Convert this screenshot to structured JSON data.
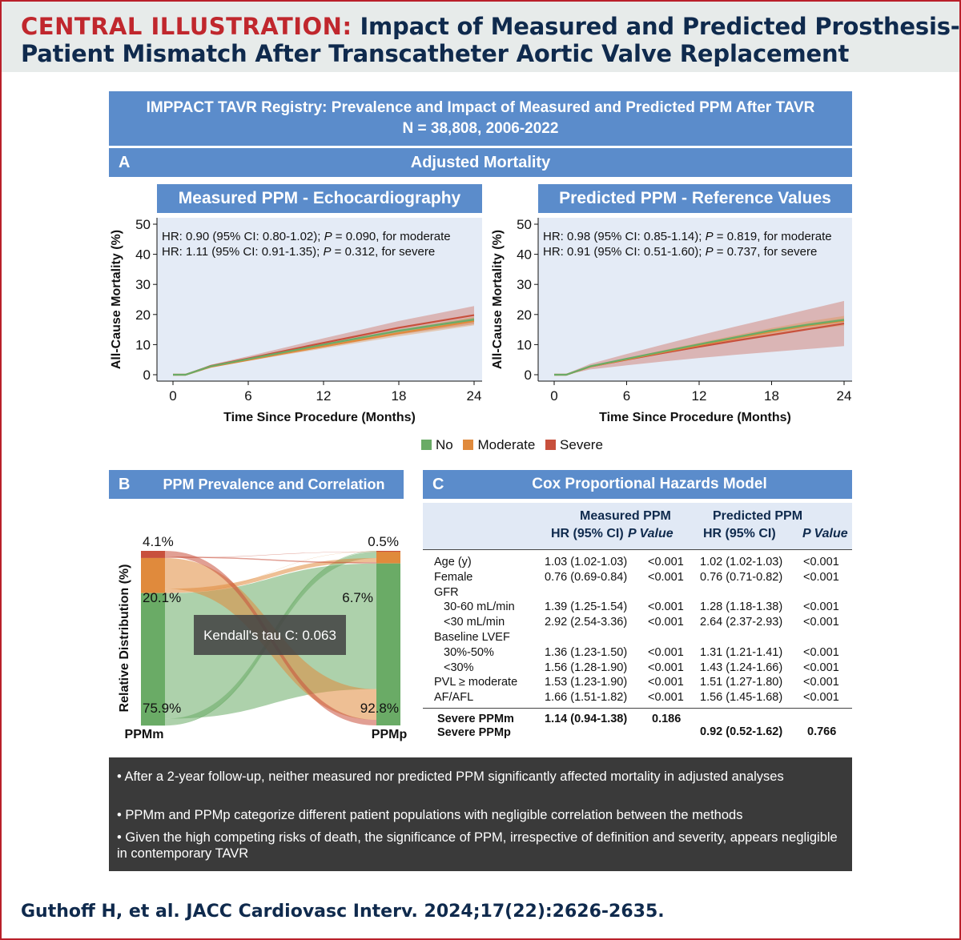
{
  "header": {
    "label": "CENTRAL ILLUSTRATION:",
    "title_line1": "Impact of Measured and Predicted Prosthesis-",
    "title_line2": "Patient Mismatch After Transcatheter Aortic Valve Replacement"
  },
  "registry": {
    "line1": "IMPPACT TAVR Registry: Prevalence and Impact of Measured and Predicted PPM After TAVR",
    "line2": "N = 38,808, 2006-2022"
  },
  "panel_a": {
    "letter": "A",
    "title": "Adjusted Mortality"
  },
  "panel_b": {
    "letter": "B",
    "title": "PPM Prevalence and Correlation"
  },
  "panel_c": {
    "letter": "C",
    "title": "Cox Proportional Hazards Model"
  },
  "legend": {
    "items": [
      "No",
      "Moderate",
      "Severe"
    ]
  },
  "colors": {
    "no": "#6aab66",
    "moderate": "#e08a3c",
    "severe": "#c8503c",
    "banner": "#5b8ccb",
    "red": "#c0272d"
  },
  "chart_data": [
    {
      "type": "line",
      "title": "Measured PPM - Echocardiography",
      "xlabel": "Time Since Procedure (Months)",
      "ylabel": "All-Cause Mortality (%)",
      "xlim": [
        0,
        24
      ],
      "ylim": [
        0,
        50
      ],
      "xticks": [
        "0",
        "6",
        "12",
        "18",
        "24"
      ],
      "yticks": [
        "0",
        "10",
        "20",
        "30",
        "40",
        "50"
      ],
      "annotations": [
        "HR: 0.90 (95% CI: 0.80-1.02); P = 0.090, for moderate",
        "HR: 1.11 (95% CI: 0.91-1.35); P = 0.312, for severe"
      ],
      "x": [
        0,
        1,
        3,
        6,
        9,
        12,
        15,
        18,
        21,
        24
      ],
      "series": [
        {
          "name": "No",
          "values": [
            0,
            0,
            2.8,
            5.2,
            7.6,
            10.0,
            12.3,
            14.6,
            16.5,
            18.3
          ],
          "ci_halfwidth": 0.6
        },
        {
          "name": "Moderate",
          "values": [
            0,
            0,
            2.6,
            4.9,
            7.2,
            9.4,
            11.6,
            13.8,
            15.8,
            17.8
          ],
          "ci_halfwidth": 1.4
        },
        {
          "name": "Severe",
          "values": [
            0,
            0,
            2.9,
            5.4,
            8.0,
            10.6,
            13.1,
            15.6,
            17.7,
            19.8
          ],
          "ci_halfwidth": 3.0
        }
      ]
    },
    {
      "type": "line",
      "title": "Predicted PPM - Reference Values",
      "xlabel": "Time Since Procedure (Months)",
      "ylabel": "All-Cause Mortality (%)",
      "xlim": [
        0,
        24
      ],
      "ylim": [
        0,
        50
      ],
      "xticks": [
        "0",
        "6",
        "12",
        "18",
        "24"
      ],
      "yticks": [
        "0",
        "10",
        "20",
        "30",
        "40",
        "50"
      ],
      "annotations": [
        "HR: 0.98 (95% CI: 0.85-1.14); P = 0.819, for moderate",
        "HR: 0.91 (95% CI: 0.51-1.60); P = 0.737, for severe"
      ],
      "x": [
        0,
        1,
        3,
        6,
        9,
        12,
        15,
        18,
        21,
        24
      ],
      "series": [
        {
          "name": "No",
          "values": [
            0,
            0,
            2.8,
            5.3,
            7.7,
            10.1,
            12.4,
            14.7,
            16.6,
            18.2
          ],
          "ci_halfwidth": 0.5
        },
        {
          "name": "Moderate",
          "values": [
            0,
            0,
            2.7,
            5.1,
            7.5,
            9.8,
            12.1,
            14.3,
            16.3,
            17.9
          ],
          "ci_halfwidth": 1.6
        },
        {
          "name": "Severe",
          "values": [
            0,
            0,
            2.7,
            5.0,
            7.2,
            9.3,
            11.3,
            13.2,
            15.1,
            17.0
          ],
          "ci_halfwidth": 7.5
        }
      ]
    },
    {
      "type": "sankey",
      "title": "PPM Prevalence and Correlation",
      "ylabel": "Relative Distribution (%)",
      "annotation": "Kendall's tau C: 0.063",
      "left_label": "PPMm",
      "right_label": "PPMp",
      "left": [
        {
          "name": "Severe",
          "value": 4.1,
          "label": "4.1%"
        },
        {
          "name": "Moderate",
          "value": 20.1,
          "label": "20.1%"
        },
        {
          "name": "No",
          "value": 75.9,
          "label": "75.9%"
        }
      ],
      "right": [
        {
          "name": "Severe",
          "value": 0.5,
          "label": "0.5%"
        },
        {
          "name": "Moderate",
          "value": 6.7,
          "label": "6.7%"
        },
        {
          "name": "No",
          "value": 92.8,
          "label": "92.8%"
        }
      ]
    }
  ],
  "table": {
    "group_measured": "Measured PPM",
    "group_predicted": "Predicted PPM",
    "col_hr": "HR (95% CI)",
    "col_p": "P Value",
    "rows": [
      {
        "label": "Age (y)",
        "m_hr": "1.03 (1.02-1.03)",
        "m_p": "<0.001",
        "p_hr": "1.02 (1.02-1.03)",
        "p_p": "<0.001"
      },
      {
        "label": "Female",
        "m_hr": "0.76 (0.69-0.84)",
        "m_p": "<0.001",
        "p_hr": "0.76 (0.71-0.82)",
        "p_p": "<0.001"
      },
      {
        "label": "GFR",
        "m_hr": "",
        "m_p": "",
        "p_hr": "",
        "p_p": ""
      },
      {
        "label": "30-60 mL/min",
        "m_hr": "1.39 (1.25-1.54)",
        "m_p": "<0.001",
        "p_hr": "1.28 (1.18-1.38)",
        "p_p": "<0.001"
      },
      {
        "label": "<30 mL/min",
        "m_hr": "2.92 (2.54-3.36)",
        "m_p": "<0.001",
        "p_hr": "2.64 (2.37-2.93)",
        "p_p": "<0.001"
      },
      {
        "label": "Baseline LVEF",
        "m_hr": "",
        "m_p": "",
        "p_hr": "",
        "p_p": ""
      },
      {
        "label": "30%-50%",
        "m_hr": "1.36 (1.23-1.50)",
        "m_p": "<0.001",
        "p_hr": "1.31 (1.21-1.41)",
        "p_p": "<0.001"
      },
      {
        "label": "<30%",
        "m_hr": "1.56 (1.28-1.90)",
        "m_p": "<0.001",
        "p_hr": "1.43 (1.24-1.66)",
        "p_p": "<0.001"
      },
      {
        "label": "PVL ≥ moderate",
        "m_hr": "1.53 (1.23-1.90)",
        "m_p": "<0.001",
        "p_hr": "1.51 (1.27-1.80)",
        "p_p": "<0.001"
      },
      {
        "label": "AF/AFL",
        "m_hr": "1.66 (1.51-1.82)",
        "m_p": "<0.001",
        "p_hr": "1.56 (1.45-1.68)",
        "p_p": "<0.001"
      }
    ],
    "severe_m": {
      "label": "Severe PPMm",
      "hr": "1.14 (0.94-1.38)",
      "p": "0.186"
    },
    "severe_p": {
      "label": "Severe PPMp",
      "hr": "0.92 (0.52-1.62)",
      "p": "0.766"
    }
  },
  "bullets": [
    "After a 2-year follow-up, neither measured nor predicted PPM significantly affected mortality in adjusted analyses",
    "PPMm and PPMp categorize different patient populations with negligible correlation between the methods",
    "Given the high competing risks of death, the significance of PPM, irrespective of definition and severity, appears negligible in contemporary TAVR"
  ],
  "citation": "Guthoff H, et al. JACC Cardiovasc Interv. 2024;17(22):2626-2635."
}
